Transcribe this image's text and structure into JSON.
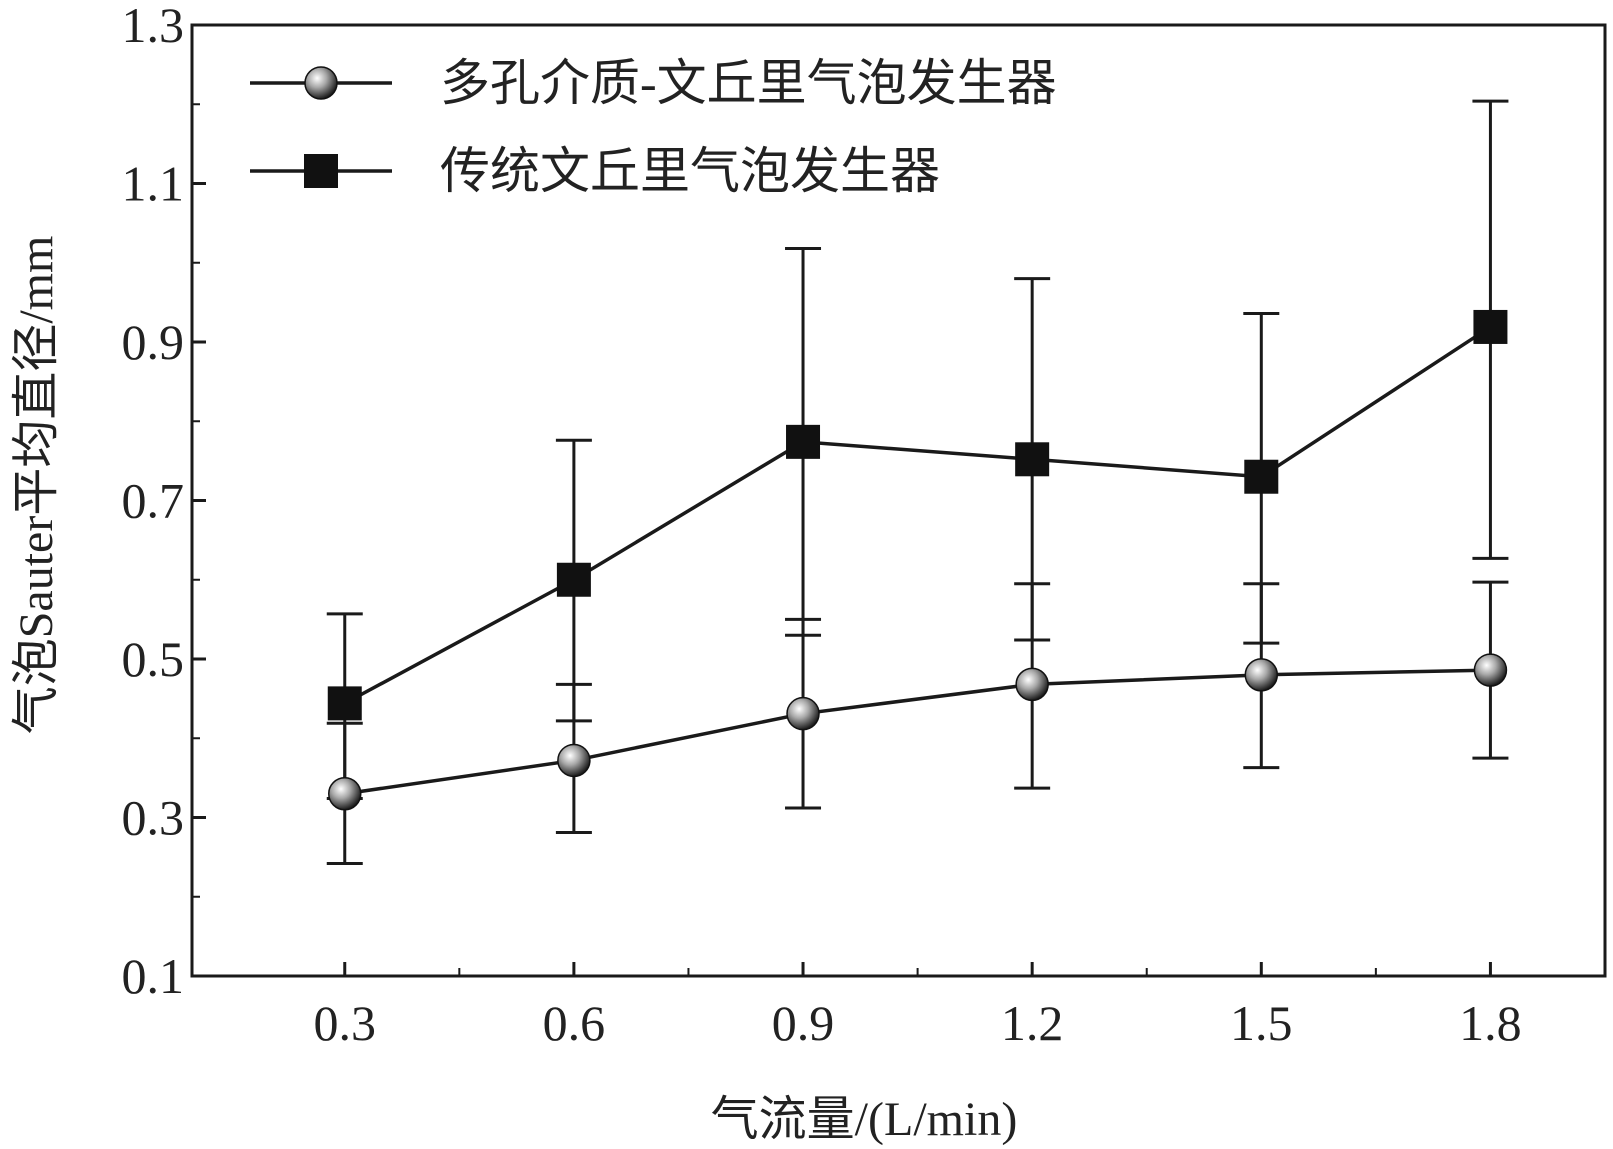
{
  "chart_data": {
    "type": "line",
    "title": "",
    "xlabel": "气流量/(L/min)",
    "ylabel": "气泡Sauter平均直径/mm",
    "x": [
      0.3,
      0.6,
      0.9,
      1.2,
      1.5,
      1.8
    ],
    "x_tick_labels": [
      "0.3",
      "0.6",
      "0.9",
      "1.2",
      "1.5",
      "1.8"
    ],
    "y_tick_labels": [
      "0.1",
      "0.3",
      "0.5",
      "0.7",
      "0.9",
      "1.1",
      "1.3"
    ],
    "y_ticks": [
      0.1,
      0.3,
      0.5,
      0.7,
      0.9,
      1.1,
      1.3
    ],
    "xlim": [
      0.1,
      1.95
    ],
    "ylim": [
      0.1,
      1.3
    ],
    "grid": false,
    "legend_position": "top-left",
    "series": [
      {
        "name": "多孔介质-文丘里气泡发生器",
        "marker": "sphere",
        "values": [
          0.33,
          0.372,
          0.431,
          0.468,
          0.48,
          0.486
        ],
        "err_low": [
          0.242,
          0.281,
          0.312,
          0.337,
          0.363,
          0.375
        ],
        "err_high": [
          0.419,
          0.468,
          0.55,
          0.595,
          0.595,
          0.597
        ]
      },
      {
        "name": "传统文丘里气泡发生器",
        "marker": "square",
        "values": [
          0.444,
          0.6,
          0.774,
          0.752,
          0.73,
          0.919
        ],
        "err_low": [
          0.324,
          0.422,
          0.53,
          0.524,
          0.52,
          0.627
        ],
        "err_high": [
          0.557,
          0.776,
          1.018,
          0.98,
          0.936,
          1.204
        ]
      }
    ],
    "colors": {
      "line": "#1a1a1a",
      "marker_square": "#111111",
      "marker_sphere": "#9a9a9a"
    }
  }
}
